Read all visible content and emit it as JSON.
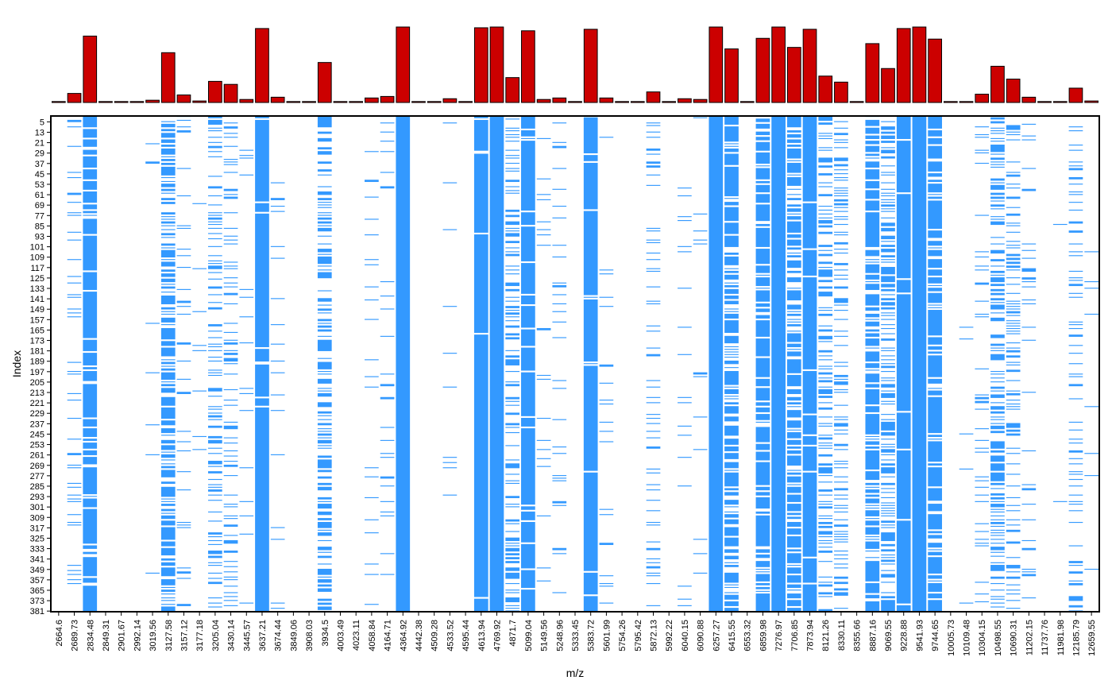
{
  "chart_data": {
    "type": "heatmap",
    "title": "",
    "xlabel": "m/z",
    "ylabel": "Index",
    "grid": false,
    "legend": "none",
    "colors": {
      "bar_fill": "#cc0000",
      "bar_stroke": "#000000",
      "cell_present": "#3399ff",
      "background": "#ffffff",
      "frame": "#000000"
    },
    "mz": [
      "2664.6",
      "2689.73",
      "2834.48",
      "2849.31",
      "2901.67",
      "2992.14",
      "3019.56",
      "3127.58",
      "3157.12",
      "3177.18",
      "3205.04",
      "3430.14",
      "3445.57",
      "3637.21",
      "3674.44",
      "3849.06",
      "3908.03",
      "3934.5",
      "4003.49",
      "4023.11",
      "4058.84",
      "4164.71",
      "4364.92",
      "4442.38",
      "4509.28",
      "4533.52",
      "4595.44",
      "4613.94",
      "4769.92",
      "4871.7",
      "5099.04",
      "5149.56",
      "5248.96",
      "5333.45",
      "5383.72",
      "5601.99",
      "5754.26",
      "5795.42",
      "5872.13",
      "5992.22",
      "6040.15",
      "6090.88",
      "6257.27",
      "6415.55",
      "6553.32",
      "6859.98",
      "7276.97",
      "7706.85",
      "7873.94",
      "8121.26",
      "8330.11",
      "8355.66",
      "8887.16",
      "9069.55",
      "9228.88",
      "9541.93",
      "9744.65",
      "10005.73",
      "10109.48",
      "10304.15",
      "10498.55",
      "10690.31",
      "11202.15",
      "11737.76",
      "11981.98",
      "12185.79",
      "12659.55"
    ],
    "peak_frequency": [
      0.0,
      0.12,
      0.88,
      0.0,
      0.0,
      0.0,
      0.03,
      0.66,
      0.1,
      0.02,
      0.28,
      0.24,
      0.04,
      0.98,
      0.07,
      0.0,
      0.0,
      0.53,
      0.0,
      0.0,
      0.06,
      0.08,
      1.0,
      0.0,
      0.0,
      0.05,
      0.0,
      0.99,
      1.0,
      0.33,
      0.95,
      0.04,
      0.06,
      0.0,
      0.97,
      0.06,
      0.0,
      0.0,
      0.14,
      0.0,
      0.05,
      0.04,
      1.0,
      0.71,
      0.0,
      0.85,
      1.0,
      0.73,
      0.97,
      0.35,
      0.27,
      0.0,
      0.78,
      0.45,
      0.98,
      1.0,
      0.84,
      0.0,
      0.01,
      0.11,
      0.48,
      0.31,
      0.07,
      0.0,
      0.01,
      0.19,
      0.02
    ],
    "index_ticks": [
      5,
      13,
      21,
      29,
      37,
      45,
      53,
      61,
      69,
      77,
      85,
      93,
      101,
      109,
      117,
      125,
      133,
      141,
      149,
      157,
      165,
      173,
      181,
      189,
      197,
      205,
      213,
      221,
      229,
      237,
      245,
      253,
      261,
      269,
      277,
      285,
      293,
      301,
      309,
      317,
      325,
      333,
      341,
      349,
      357,
      365,
      373,
      381
    ],
    "n_rows": 381
  }
}
